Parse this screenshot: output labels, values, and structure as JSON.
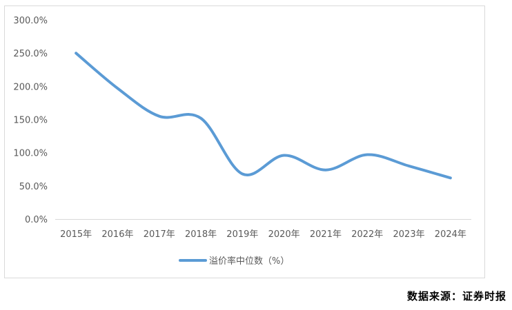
{
  "chart_data": {
    "type": "line",
    "title": "",
    "xlabel": "",
    "ylabel": "",
    "categories": [
      "2015年",
      "2016年",
      "2017年",
      "2018年",
      "2019年",
      "2020年",
      "2021年",
      "2022年",
      "2023年",
      "2024年"
    ],
    "series": [
      {
        "name": "溢价率中位数（%）",
        "color": "#5b9bd5",
        "smooth": true,
        "values": [
          250.0,
          197.0,
          155.0,
          152.0,
          68.0,
          96.0,
          74.0,
          97.0,
          80.0,
          62.0
        ]
      }
    ],
    "ylim": [
      0,
      300
    ],
    "yticks": [
      0,
      50,
      100,
      150,
      200,
      250,
      300
    ],
    "ytick_labels": [
      "0.0%",
      "50.0%",
      "100.0%",
      "150.0%",
      "200.0%",
      "250.0%",
      "300.0%"
    ],
    "grid": false,
    "legend_position": "bottom"
  },
  "legend": {
    "label": "溢价率中位数（%）"
  },
  "source_note": "数据来源：证券时报"
}
